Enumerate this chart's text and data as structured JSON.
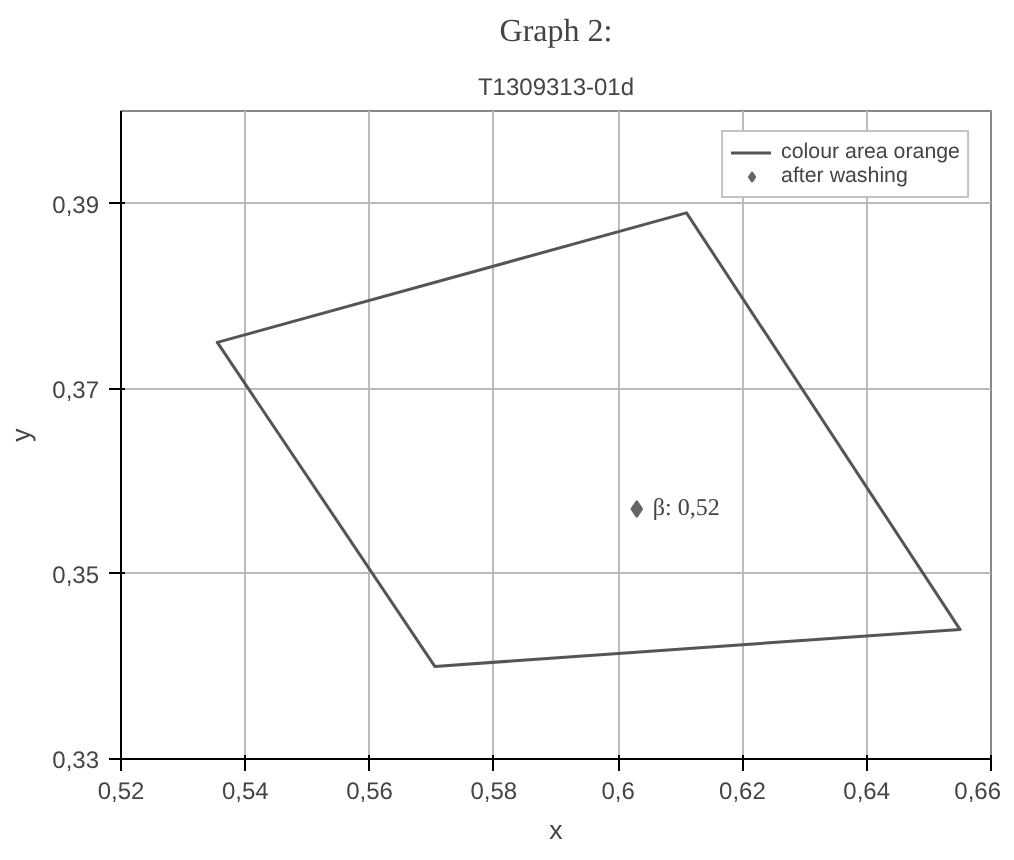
{
  "chart_data": {
    "type": "line",
    "title": "Graph 2:",
    "subtitle": "T1309313-01d",
    "xlabel": "x",
    "ylabel": "y",
    "series": [
      {
        "name": "colour area orange",
        "color": "#555555",
        "x": [
          0.5355,
          0.611,
          0.655
        ],
        "values": [
          0.375,
          0.389,
          0.344
        ]
      },
      {
        "color": "#555555",
        "x": [
          0.5355,
          0.5705,
          0.655
        ],
        "values": [
          0.375,
          0.34,
          0.344
        ]
      },
      {
        "name": "after washing",
        "type": "scatter",
        "marker": "diamond",
        "color": "#666666",
        "x": [
          0.603
        ],
        "values": [
          0.357
        ]
      }
    ],
    "annotations": [
      {
        "text": "β: 0,52",
        "x": 0.603,
        "y": 0.357
      }
    ],
    "xlim": [
      0.52,
      0.66
    ],
    "ylim": [
      0.33,
      0.4
    ],
    "xticks": [
      {
        "value": 0.52,
        "label": "0,52"
      },
      {
        "value": 0.54,
        "label": "0,54"
      },
      {
        "value": 0.56,
        "label": "0,56"
      },
      {
        "value": 0.58,
        "label": "0,58"
      },
      {
        "value": 0.6,
        "label": "0,6"
      },
      {
        "value": 0.62,
        "label": "0,62"
      },
      {
        "value": 0.64,
        "label": "0,64"
      },
      {
        "value": 0.66,
        "label": "0,66"
      }
    ],
    "yticks": [
      {
        "value": 0.33,
        "label": "0,33"
      },
      {
        "value": 0.35,
        "label": "0,35"
      },
      {
        "value": 0.37,
        "label": "0,37"
      },
      {
        "value": 0.39,
        "label": "0,39"
      }
    ],
    "grid": true,
    "legend": "top right"
  }
}
